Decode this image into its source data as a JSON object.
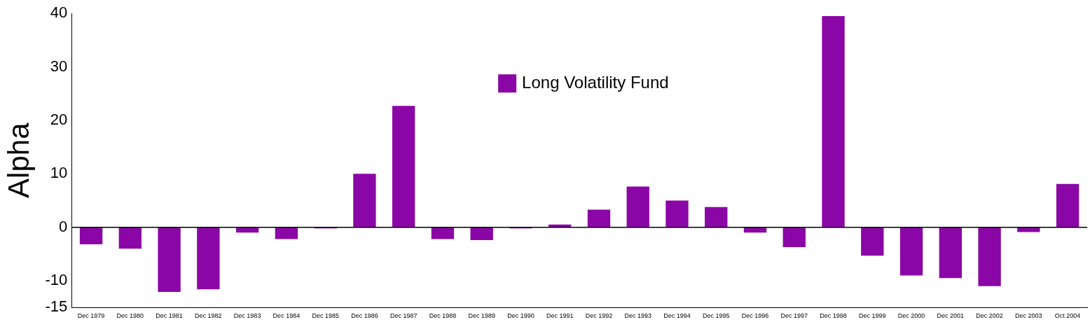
{
  "chart_data": {
    "type": "bar",
    "ylabel": "Alpha",
    "categories": [
      "Dec 1979",
      "Dec 1980",
      "Dec 1981",
      "Dec 1982",
      "Dec 1983",
      "Dec 1984",
      "Dec 1985",
      "Dec 1986",
      "Dec 1987",
      "Dec 1988",
      "Dec 1989",
      "Dec 1990",
      "Dec 1991",
      "Dec 1992",
      "Dec 1993",
      "Dec 1994",
      "Dec 1995",
      "Dec 1996",
      "Dec 1997",
      "Dec 1998",
      "Dec 1999",
      "Dec 2000",
      "Dec 2001",
      "Dec 2002",
      "Dec 2003",
      "Oct 2004"
    ],
    "series": [
      {
        "name": "Long Volatility Fund",
        "color": "#8b06a6",
        "values": [
          -3.2,
          -4.0,
          -12.1,
          -11.6,
          -1.0,
          -2.2,
          -0.2,
          10.0,
          22.7,
          -2.2,
          -2.4,
          -0.2,
          0.5,
          3.3,
          7.6,
          5.0,
          3.8,
          -1.0,
          -3.7,
          39.5,
          -5.3,
          -9.0,
          -9.5,
          -11.0,
          -0.9,
          8.1
        ]
      }
    ],
    "ylim": [
      -15,
      40
    ],
    "yticks": [
      -15,
      -10,
      0,
      10,
      20,
      30,
      40
    ],
    "grid": false,
    "legend": "top",
    "ref_lines": [
      {
        "axis": "y",
        "value": 0,
        "color": "#000000"
      }
    ]
  }
}
